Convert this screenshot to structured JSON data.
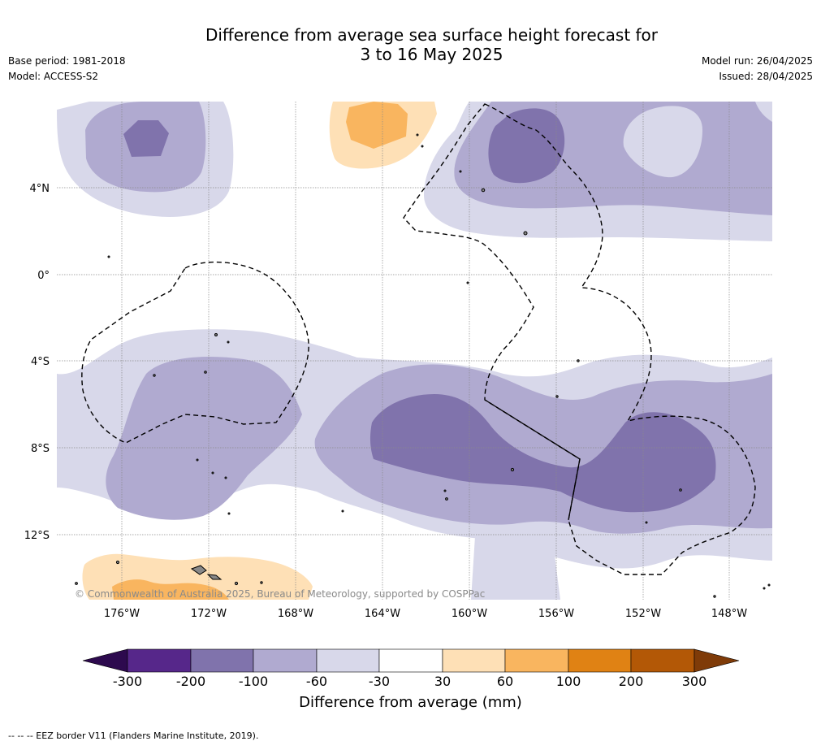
{
  "title_line1": "Difference from average sea surface height forecast for",
  "title_line2": "3 to 16 May 2025",
  "base_period": "Base period: 1981-2018",
  "model": "Model: ACCESS-S2",
  "model_run": "Model run: 26/04/2025",
  "issued": "Issued: 28/04/2025",
  "copyright": "© Commonwealth of Australia 2025, Bureau of Meteorology, supported by COSPPac",
  "footer": "--  --  -- EEZ border V11 (Flanders Marine Institute, 2019).",
  "lat_labels": [
    "4°N",
    "0°",
    "4°S",
    "8°S",
    "12°S"
  ],
  "lon_labels": [
    "176°W",
    "172°W",
    "168°W",
    "164°W",
    "160°W",
    "156°W",
    "152°W",
    "148°W"
  ],
  "colorbar": {
    "label": "Difference from average (mm)",
    "ticks": [
      "-300",
      "-200",
      "-100",
      "-60",
      "-30",
      "30",
      "60",
      "100",
      "200",
      "300"
    ],
    "colors": [
      "#2d0a4e",
      "#56278a",
      "#8073ac",
      "#b0aad0",
      "#d8d8ea",
      "#ffffff",
      "#fee0b6",
      "#f9b55f",
      "#e08214",
      "#b35806",
      "#7f3b08"
    ]
  }
}
